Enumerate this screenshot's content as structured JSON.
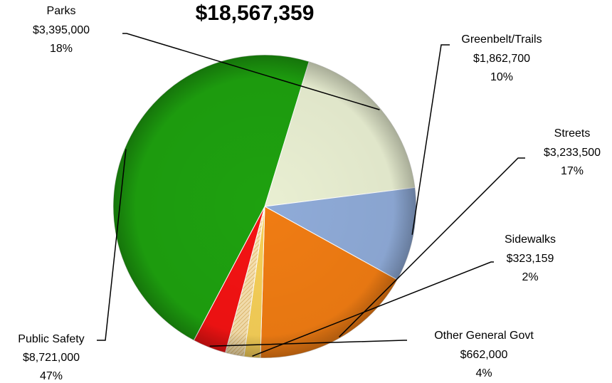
{
  "chart_data": {
    "type": "pie",
    "title": "$18,567,359",
    "slices": [
      {
        "name": "Parks",
        "amount": "$3,395,000",
        "percent": "18%",
        "value": 3395000,
        "color": "#e9efd2"
      },
      {
        "name": "Greenbelt/Trails",
        "amount": "$1,862,700",
        "percent": "10%",
        "value": 1862700,
        "color": "#8fabd8"
      },
      {
        "name": "Streets",
        "amount": "$3,233,500",
        "percent": "17%",
        "value": 3233500,
        "color": "#f07c13"
      },
      {
        "name": "Sidewalks",
        "amount": "$323,159",
        "percent": "2%",
        "value": 323159,
        "color": "#f6cf58"
      },
      {
        "name": "",
        "amount": "",
        "percent": "",
        "value": 370000,
        "color": "#f8e2b0"
      },
      {
        "name": "Other General Govt",
        "amount": "$662,000",
        "percent": "4%",
        "value": 662000,
        "color": "#f41313"
      },
      {
        "name": "Public Safety",
        "amount": "$8,721,000",
        "percent": "47%",
        "value": 8721000,
        "color": "#1ea10f"
      }
    ],
    "legend": "none"
  }
}
